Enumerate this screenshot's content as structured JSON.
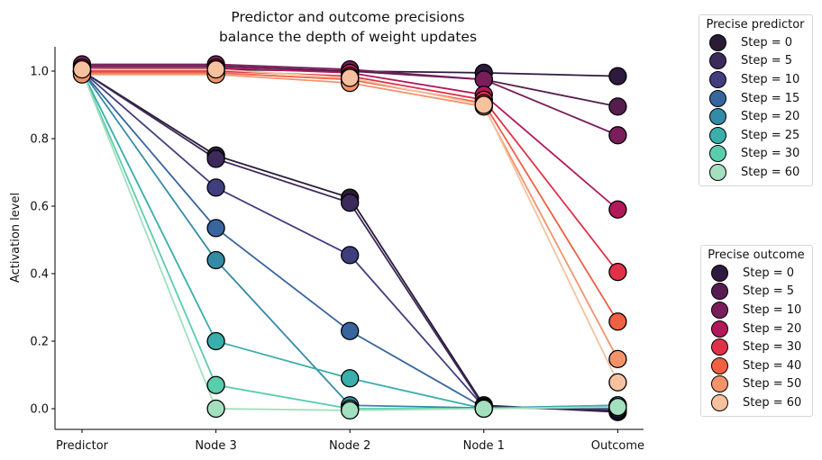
{
  "chart_data": {
    "type": "line",
    "title": "Predictor and outcome precisions\nbalance the depth of weight updates",
    "title_lines": [
      "Predictor and outcome precisions",
      "balance the depth of weight updates"
    ],
    "xlabel": "",
    "ylabel": "Activation level",
    "categories": [
      "Predictor",
      "Node 3",
      "Node 2",
      "Node 1",
      "Outcome"
    ],
    "ylim": [
      -0.06,
      1.07
    ],
    "yticks": [
      0.0,
      0.2,
      0.4,
      0.6,
      0.8,
      1.0
    ],
    "ytick_labels": [
      "0.0",
      "0.2",
      "0.4",
      "0.6",
      "0.8",
      "1.0"
    ],
    "grid": false,
    "groups": [
      {
        "name": "Precise predictor",
        "legend_placement": "upper-right-outside",
        "series": [
          {
            "name": "Step = 0",
            "color": "#2b1c35",
            "values": [
              1.0,
              0.75,
              0.625,
              0.01,
              -0.01
            ]
          },
          {
            "name": "Step = 5",
            "color": "#3c2a5b",
            "values": [
              1.0,
              0.74,
              0.61,
              0.005,
              -0.005
            ]
          },
          {
            "name": "Step = 10",
            "color": "#413e7e",
            "values": [
              1.0,
              0.655,
              0.455,
              0.005,
              0.0
            ]
          },
          {
            "name": "Step = 15",
            "color": "#38659e",
            "values": [
              1.0,
              0.535,
              0.23,
              0.003,
              0.005
            ]
          },
          {
            "name": "Step = 20",
            "color": "#348ba6",
            "values": [
              1.0,
              0.44,
              0.01,
              0.002,
              0.01
            ]
          },
          {
            "name": "Step = 25",
            "color": "#39aeaa",
            "values": [
              1.0,
              0.2,
              0.09,
              0.0,
              0.01
            ]
          },
          {
            "name": "Step = 30",
            "color": "#5acdad",
            "values": [
              1.0,
              0.07,
              0.0,
              0.0,
              0.005
            ]
          },
          {
            "name": "Step = 60",
            "color": "#a3e0bf",
            "values": [
              1.0,
              0.0,
              -0.005,
              0.0,
              0.005
            ]
          }
        ]
      },
      {
        "name": "Precise outcome",
        "legend_placement": "lower-right-outside",
        "series": [
          {
            "name": "Step = 0",
            "color": "#2d1a3e",
            "values": [
              1.01,
              1.005,
              1.0,
              0.995,
              0.985
            ]
          },
          {
            "name": "Step = 5",
            "color": "#561e4f",
            "values": [
              1.015,
              1.015,
              1.0,
              0.975,
              0.895
            ]
          },
          {
            "name": "Step = 10",
            "color": "#7a1e5b",
            "values": [
              1.02,
              1.02,
              1.005,
              0.975,
              0.81
            ]
          },
          {
            "name": "Step = 20",
            "color": "#b3185a",
            "values": [
              1.01,
              1.01,
              0.995,
              0.93,
              0.59
            ]
          },
          {
            "name": "Step = 30",
            "color": "#e03148",
            "values": [
              1.0,
              1.0,
              0.985,
              0.915,
              0.405
            ]
          },
          {
            "name": "Step = 40",
            "color": "#f06043",
            "values": [
              0.995,
              0.995,
              0.975,
              0.905,
              0.258
            ]
          },
          {
            "name": "Step = 50",
            "color": "#f4936a",
            "values": [
              0.99,
              0.99,
              0.965,
              0.895,
              0.147
            ]
          },
          {
            "name": "Step = 60",
            "color": "#f6c19f",
            "values": [
              1.005,
              1.005,
              0.98,
              0.9,
              0.078
            ]
          }
        ]
      }
    ]
  }
}
